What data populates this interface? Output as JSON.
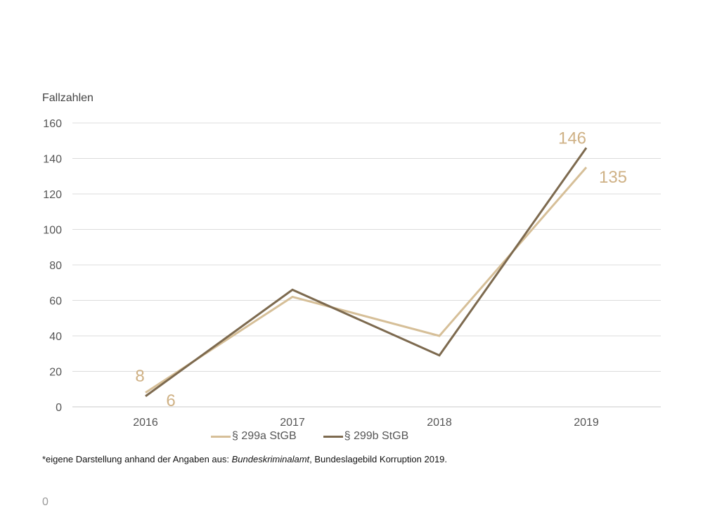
{
  "chart_data": {
    "type": "line",
    "ylabel": "Fallzahlen",
    "xlabel": "",
    "categories": [
      "2016",
      "2017",
      "2018",
      "2019"
    ],
    "ylim": [
      0,
      160
    ],
    "yticks": [
      0,
      20,
      40,
      60,
      80,
      100,
      120,
      140,
      160
    ],
    "grid": true,
    "legend_position": "bottom",
    "series": [
      {
        "name": "§ 299a StGB",
        "values": [
          8,
          62,
          40,
          135
        ],
        "color": "#d6bf98",
        "data_labels": {
          "0": "8",
          "3": "135"
        }
      },
      {
        "name": "§ 299b StGB",
        "values": [
          6,
          66,
          29,
          146
        ],
        "color": "#7d6a4f",
        "data_labels": {
          "0": "6",
          "3": "146"
        }
      }
    ],
    "label_color": "#cfb185"
  },
  "footnote": {
    "prefix": "*eigene Darstellung anhand der Angaben aus: ",
    "italic": "Bundeskriminalamt",
    "suffix": ", Bundeslagebild Korruption 2019."
  },
  "page_number": "0"
}
